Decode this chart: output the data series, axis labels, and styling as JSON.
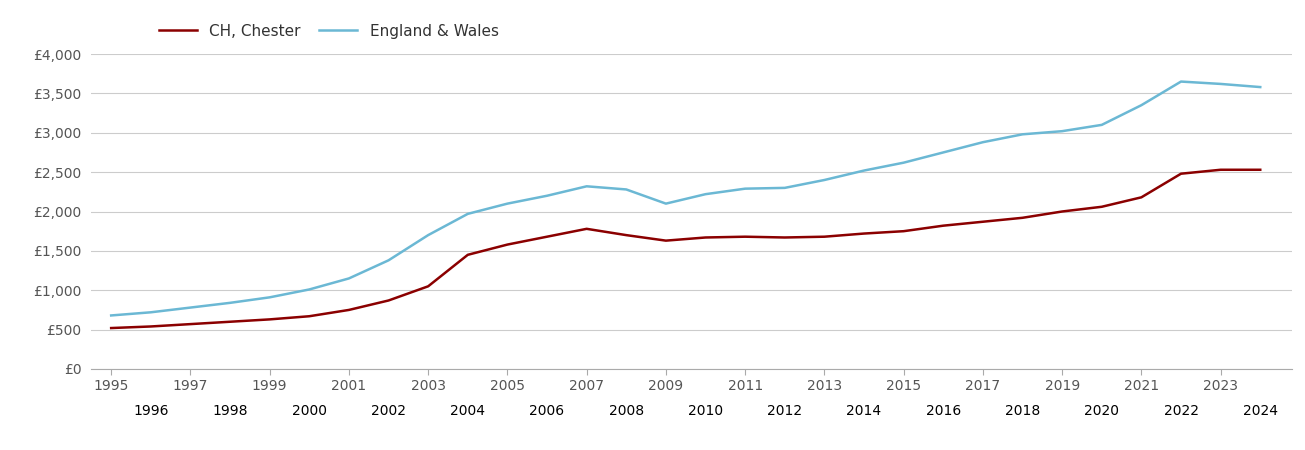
{
  "ch_chester_years": [
    1995,
    1996,
    1997,
    1998,
    1999,
    2000,
    2001,
    2002,
    2003,
    2004,
    2005,
    2006,
    2007,
    2008,
    2009,
    2010,
    2011,
    2012,
    2013,
    2014,
    2015,
    2016,
    2017,
    2018,
    2019,
    2020,
    2021,
    2022,
    2023,
    2024
  ],
  "ch_chester_values": [
    520,
    540,
    570,
    600,
    630,
    670,
    750,
    870,
    1050,
    1450,
    1580,
    1680,
    1780,
    1700,
    1630,
    1670,
    1680,
    1670,
    1680,
    1720,
    1750,
    1820,
    1870,
    1920,
    2000,
    2060,
    2180,
    2480,
    2530,
    2530
  ],
  "england_wales_years": [
    1995,
    1996,
    1997,
    1998,
    1999,
    2000,
    2001,
    2002,
    2003,
    2004,
    2005,
    2006,
    2007,
    2008,
    2009,
    2010,
    2011,
    2012,
    2013,
    2014,
    2015,
    2016,
    2017,
    2018,
    2019,
    2020,
    2021,
    2022,
    2023,
    2024
  ],
  "england_wales_values": [
    680,
    720,
    780,
    840,
    910,
    1010,
    1150,
    1380,
    1700,
    1970,
    2100,
    2200,
    2320,
    2280,
    2100,
    2220,
    2290,
    2300,
    2400,
    2520,
    2620,
    2750,
    2880,
    2980,
    3020,
    3100,
    3350,
    3650,
    3620,
    3580
  ],
  "ch_color": "#8b0000",
  "ew_color": "#6bb8d4",
  "ylim": [
    0,
    4000
  ],
  "yticks": [
    0,
    500,
    1000,
    1500,
    2000,
    2500,
    3000,
    3500,
    4000
  ],
  "ytick_labels": [
    "£0",
    "£500",
    "£1,000",
    "£1,500",
    "£2,000",
    "£2,500",
    "£3,000",
    "£3,500",
    "£4,000"
  ],
  "xlim_min": 1994.5,
  "xlim_max": 2024.8,
  "legend_label_ch": "CH, Chester",
  "legend_label_ew": "England & Wales",
  "background_color": "#ffffff",
  "grid_color": "#cccccc",
  "line_width": 1.8,
  "odd_xticks": [
    1995,
    1997,
    1999,
    2001,
    2003,
    2005,
    2007,
    2009,
    2011,
    2013,
    2015,
    2017,
    2019,
    2021,
    2023
  ],
  "even_xticks": [
    1996,
    1998,
    2000,
    2002,
    2004,
    2006,
    2008,
    2010,
    2012,
    2014,
    2016,
    2018,
    2020,
    2022,
    2024
  ],
  "tick_color": "#555555",
  "legend_fontsize": 11,
  "tick_fontsize": 10
}
